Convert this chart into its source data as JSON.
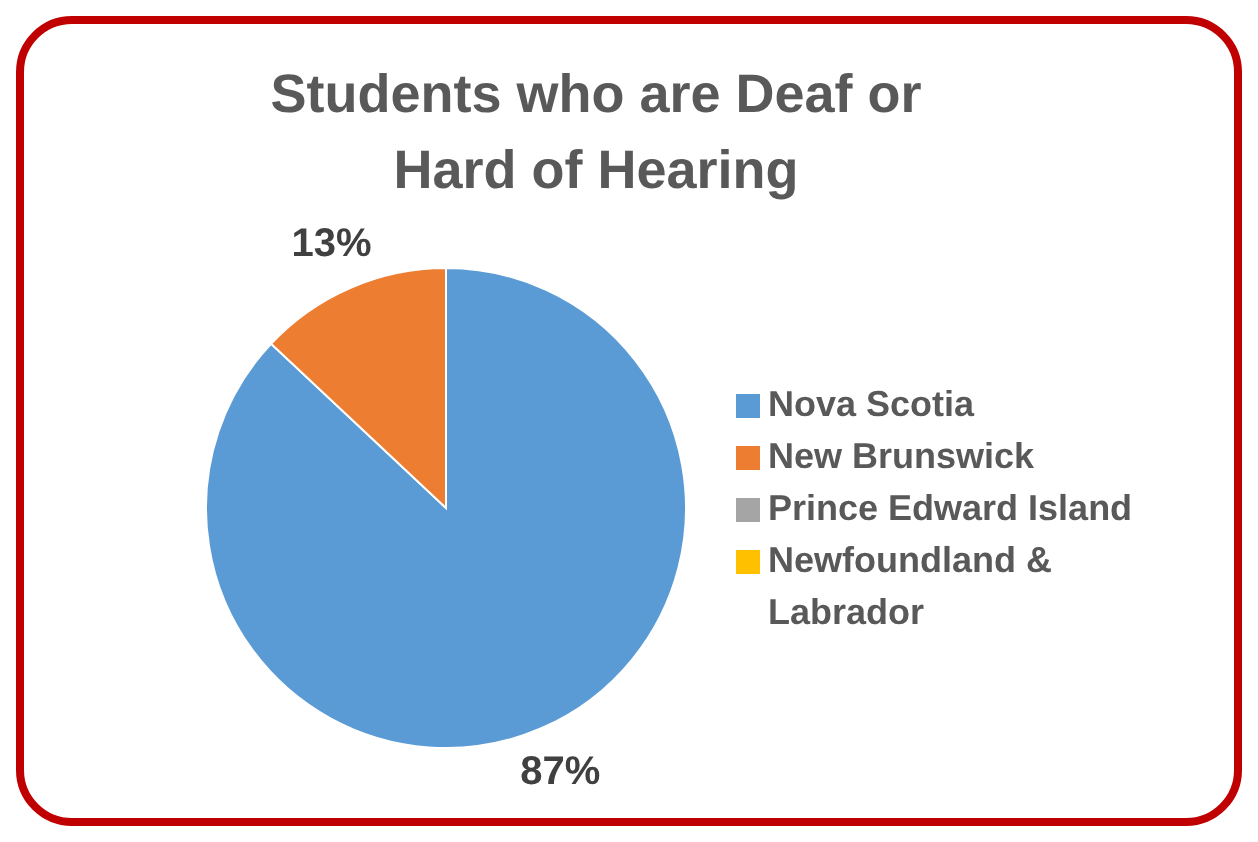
{
  "chart_data": {
    "type": "pie",
    "title": "Students who are Deaf or Hard of Hearing",
    "categories": [
      "Nova Scotia",
      "New Brunswick",
      "Prince Edward Island",
      "Newfoundland & Labrador"
    ],
    "values": [
      87,
      13,
      0,
      0
    ],
    "colors": [
      "#5b9bd5",
      "#ed7d31",
      "#a5a5a5",
      "#ffc000"
    ],
    "value_labels": [
      "87%",
      "13%",
      null,
      null
    ],
    "legend": "right"
  }
}
